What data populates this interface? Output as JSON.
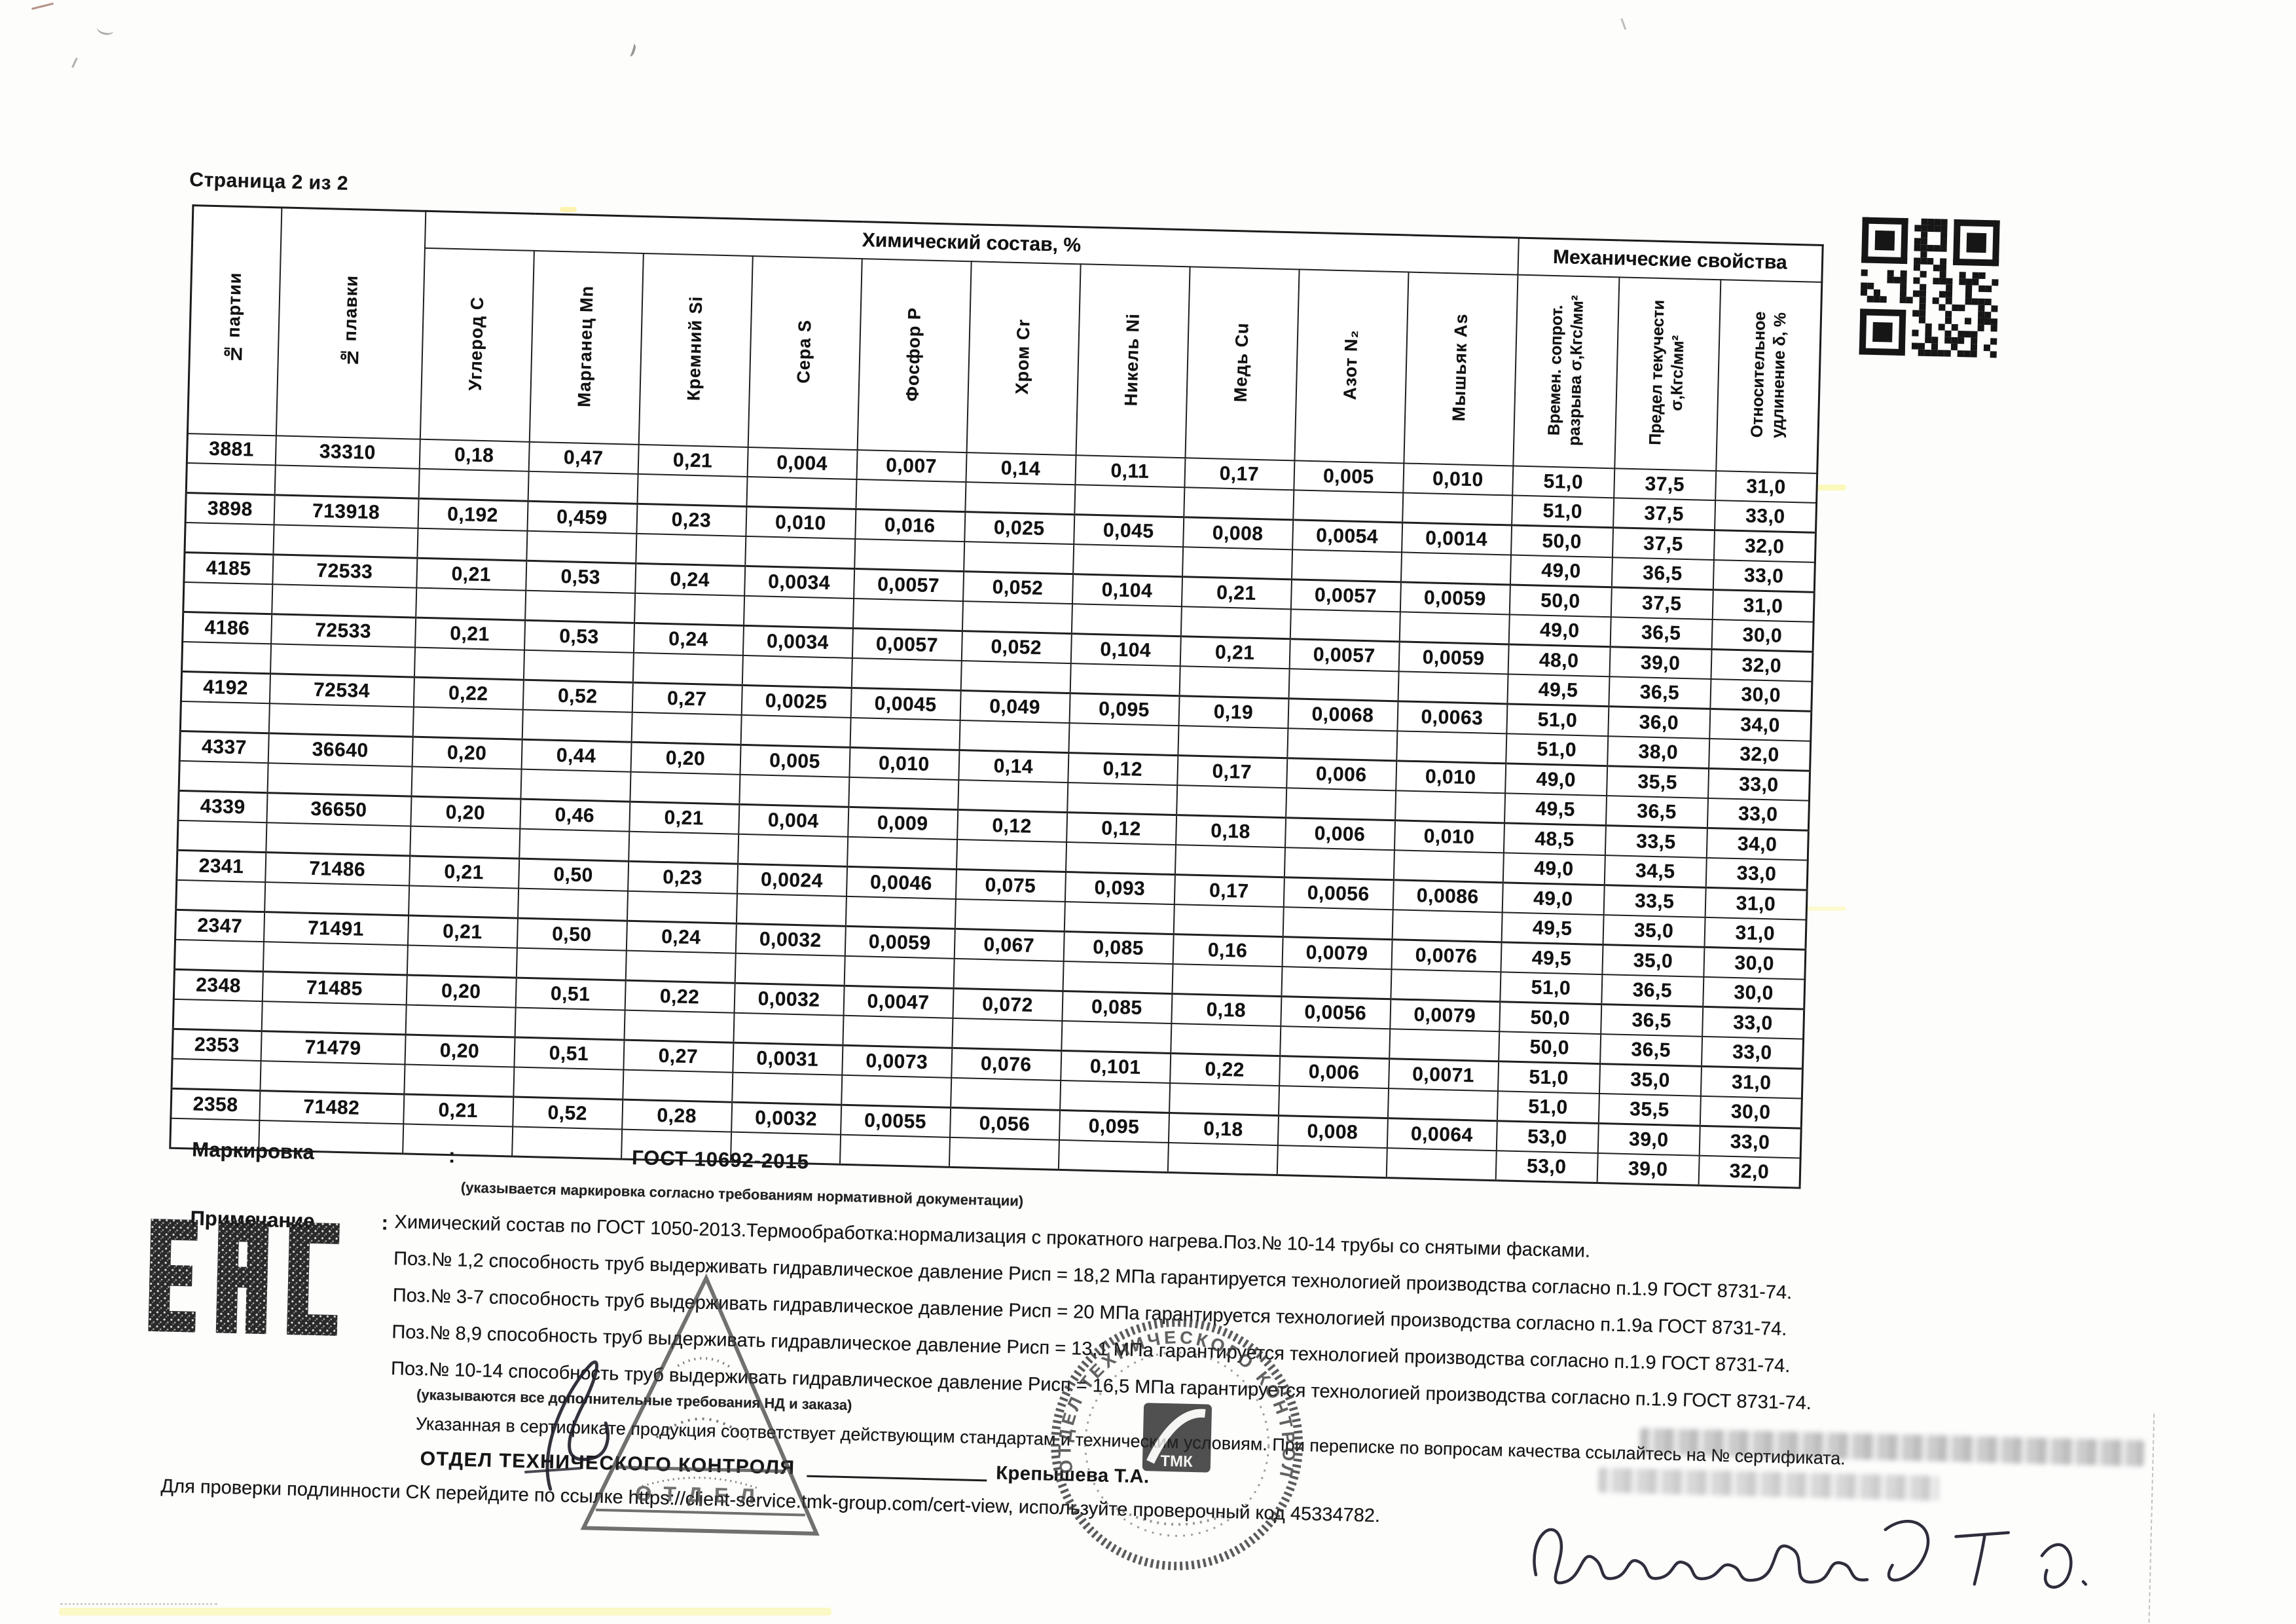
{
  "page": {
    "label": "Страница 2 из 2"
  },
  "table": {
    "group_chemical": "Химический состав, %",
    "group_mechanical": "Механические свойства",
    "columns": {
      "batch": "№ партии",
      "heat": "№ плавки"
    },
    "chem_headers": [
      "Углерод С",
      "Марганец Mn",
      "Кремний Si",
      "Сера S",
      "Фосфор Р",
      "Хром Cr",
      "Никель Ni",
      "Медь Cu",
      "Азот N₂",
      "Мышьяк As"
    ],
    "mech_headers": [
      "Времен. сопрот.\nразрыва σ,Кгс/мм²",
      "Предел текучести\nσ,Кгс/мм²",
      "Относительное\nудлинение δ, %"
    ],
    "rows": [
      {
        "batch": "3881",
        "heat": "33310",
        "chem": [
          "0,18",
          "0,47",
          "0,21",
          "0,004",
          "0,007",
          "0,14",
          "0,11",
          "0,17",
          "0,005",
          "0,010"
        ],
        "mech": [
          [
            "51,0",
            "37,5",
            "31,0"
          ],
          [
            "51,0",
            "37,5",
            "33,0"
          ]
        ]
      },
      {
        "batch": "3898",
        "heat": "713918",
        "chem": [
          "0,192",
          "0,459",
          "0,23",
          "0,010",
          "0,016",
          "0,025",
          "0,045",
          "0,008",
          "0,0054",
          "0,0014"
        ],
        "mech": [
          [
            "50,0",
            "37,5",
            "32,0"
          ],
          [
            "49,0",
            "36,5",
            "33,0"
          ]
        ]
      },
      {
        "batch": "4185",
        "heat": "72533",
        "chem": [
          "0,21",
          "0,53",
          "0,24",
          "0,0034",
          "0,0057",
          "0,052",
          "0,104",
          "0,21",
          "0,0057",
          "0,0059"
        ],
        "mech": [
          [
            "50,0",
            "37,5",
            "31,0"
          ],
          [
            "49,0",
            "36,5",
            "30,0"
          ]
        ]
      },
      {
        "batch": "4186",
        "heat": "72533",
        "chem": [
          "0,21",
          "0,53",
          "0,24",
          "0,0034",
          "0,0057",
          "0,052",
          "0,104",
          "0,21",
          "0,0057",
          "0,0059"
        ],
        "mech": [
          [
            "48,0",
            "39,0",
            "32,0"
          ],
          [
            "49,5",
            "36,5",
            "30,0"
          ]
        ]
      },
      {
        "batch": "4192",
        "heat": "72534",
        "chem": [
          "0,22",
          "0,52",
          "0,27",
          "0,0025",
          "0,0045",
          "0,049",
          "0,095",
          "0,19",
          "0,0068",
          "0,0063"
        ],
        "mech": [
          [
            "51,0",
            "36,0",
            "34,0"
          ],
          [
            "51,0",
            "38,0",
            "32,0"
          ]
        ]
      },
      {
        "batch": "4337",
        "heat": "36640",
        "chem": [
          "0,20",
          "0,44",
          "0,20",
          "0,005",
          "0,010",
          "0,14",
          "0,12",
          "0,17",
          "0,006",
          "0,010"
        ],
        "mech": [
          [
            "49,0",
            "35,5",
            "33,0"
          ],
          [
            "49,5",
            "36,5",
            "33,0"
          ]
        ]
      },
      {
        "batch": "4339",
        "heat": "36650",
        "chem": [
          "0,20",
          "0,46",
          "0,21",
          "0,004",
          "0,009",
          "0,12",
          "0,12",
          "0,18",
          "0,006",
          "0,010"
        ],
        "mech": [
          [
            "48,5",
            "33,5",
            "34,0"
          ],
          [
            "49,0",
            "34,5",
            "33,0"
          ]
        ]
      },
      {
        "batch": "2341",
        "heat": "71486",
        "chem": [
          "0,21",
          "0,50",
          "0,23",
          "0,0024",
          "0,0046",
          "0,075",
          "0,093",
          "0,17",
          "0,0056",
          "0,0086"
        ],
        "mech": [
          [
            "49,0",
            "33,5",
            "31,0"
          ],
          [
            "49,5",
            "35,0",
            "31,0"
          ]
        ]
      },
      {
        "batch": "2347",
        "heat": "71491",
        "chem": [
          "0,21",
          "0,50",
          "0,24",
          "0,0032",
          "0,0059",
          "0,067",
          "0,085",
          "0,16",
          "0,0079",
          "0,0076"
        ],
        "mech": [
          [
            "49,5",
            "35,0",
            "30,0"
          ],
          [
            "51,0",
            "36,5",
            "30,0"
          ]
        ]
      },
      {
        "batch": "2348",
        "heat": "71485",
        "chem": [
          "0,20",
          "0,51",
          "0,22",
          "0,0032",
          "0,0047",
          "0,072",
          "0,085",
          "0,18",
          "0,0056",
          "0,0079"
        ],
        "mech": [
          [
            "50,0",
            "36,5",
            "33,0"
          ],
          [
            "50,0",
            "36,5",
            "33,0"
          ]
        ]
      },
      {
        "batch": "2353",
        "heat": "71479",
        "chem": [
          "0,20",
          "0,51",
          "0,27",
          "0,0031",
          "0,0073",
          "0,076",
          "0,101",
          "0,22",
          "0,006",
          "0,0071"
        ],
        "mech": [
          [
            "51,0",
            "35,0",
            "31,0"
          ],
          [
            "51,0",
            "35,5",
            "30,0"
          ]
        ]
      },
      {
        "batch": "2358",
        "heat": "71482",
        "chem": [
          "0,21",
          "0,52",
          "0,28",
          "0,0032",
          "0,0055",
          "0,056",
          "0,095",
          "0,18",
          "0,008",
          "0,0064"
        ],
        "mech": [
          [
            "53,0",
            "39,0",
            "33,0"
          ],
          [
            "53,0",
            "39,0",
            "32,0"
          ]
        ]
      }
    ]
  },
  "marking": {
    "label": "Маркировка",
    "colon": ":",
    "value": "ГОСТ 10692-2015",
    "hint": "(указывается маркировка согласно требованиям нормативной документации)"
  },
  "note": {
    "label": "Примечание",
    "colon": ":",
    "lines": [
      "Химический состав по ГОСТ 1050-2013.Термообработка:нормализация с прокатного нагрева.Поз.№ 10-14 трубы со снятыми фасками.",
      "Поз.№ 1,2 способность труб выдерживать гидравлическое давление Рисп = 18,2 МПа гарантируется технологией производства согласно п.1.9 ГОСТ 8731-74.",
      "Поз.№ 3-7 способность труб выдерживать гидравлическое давление Рисп = 20 МПа гарантируется технологией производства согласно п.1.9а ГОСТ 8731-74.",
      "Поз.№ 8,9 способность труб выдерживать гидравлическое давление Рисп = 13,1 МПа гарантируется технологией производства согласно п.1.9 ГОСТ 8731-74.",
      "Поз.№ 10-14 способность труб выдерживать гидравлическое давление Рисп = 16,5 МПа гарантируется технологией производства согласно п.1.9 ГОСТ 8731-74."
    ],
    "extra_hint": "(указываются все дополнительные требования НД и заказа)",
    "conformity": "Указанная в сертификате продукция соответствует действующим стандартам и техническим условиям. При переписке по вопросам качества ссылайтесь на № сертификата."
  },
  "footer": {
    "department": "ОТДЕЛ ТЕХНИЧЕСКОГО КОНТРОЛЯ",
    "signer": "Крепышева Т.А.",
    "verification": "Для проверки подлинности СК перейдите по ссылке https://client-service.tmk-group.com/cert-view, используйте проверочный код 45334782."
  },
  "stamps": {
    "eac_mark": "ЕАС",
    "round_stamp_text": "ОТДЕЛ ТЕХНИЧЕСКОГО КОНТРОЛЯ",
    "round_stamp_center": "ТМК",
    "triangle_stamp_word": "ОТДЕЛ"
  }
}
